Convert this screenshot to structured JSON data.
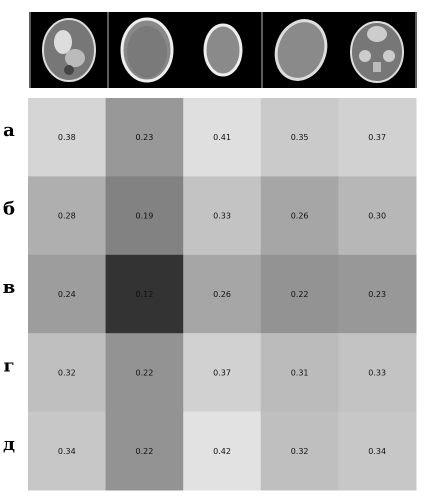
{
  "thumbnails": [
    {
      "icon": "ct-head-scan-icon"
    },
    {
      "icon": "ct-head-scan-icon"
    },
    {
      "icon": "ct-head-scan-icon"
    },
    {
      "icon": "ct-head-scan-icon"
    },
    {
      "icon": "ct-head-scan-icon"
    }
  ],
  "chart_data": {
    "type": "heatmap",
    "row_labels": [
      "а",
      "б",
      "в",
      "г",
      "д"
    ],
    "columns": 5,
    "values": [
      [
        0.38,
        0.23,
        0.41,
        0.35,
        0.37
      ],
      [
        0.28,
        0.19,
        0.33,
        0.26,
        0.3
      ],
      [
        0.24,
        0.12,
        0.26,
        0.22,
        0.23
      ],
      [
        0.32,
        0.22,
        0.37,
        0.31,
        0.33
      ],
      [
        0.34,
        0.22,
        0.42,
        0.32,
        0.34
      ]
    ],
    "cell_labels": [
      [
        "0.38",
        "0.23",
        "0.41",
        "0.35",
        "0.37"
      ],
      [
        "0.28",
        "0.19",
        "0.33",
        "0.26",
        "0.30"
      ],
      [
        "0.24",
        "0.12",
        "0.26",
        "0.22",
        "0.23"
      ],
      [
        "0.32",
        "0.22",
        "0.37",
        "0.31",
        "0.33"
      ],
      [
        "0.34",
        "0.22",
        "0.42",
        "0.32",
        "0.34"
      ]
    ],
    "colormap": "grayscale",
    "color_low": "#333333",
    "color_high": "#e2e2e2"
  }
}
